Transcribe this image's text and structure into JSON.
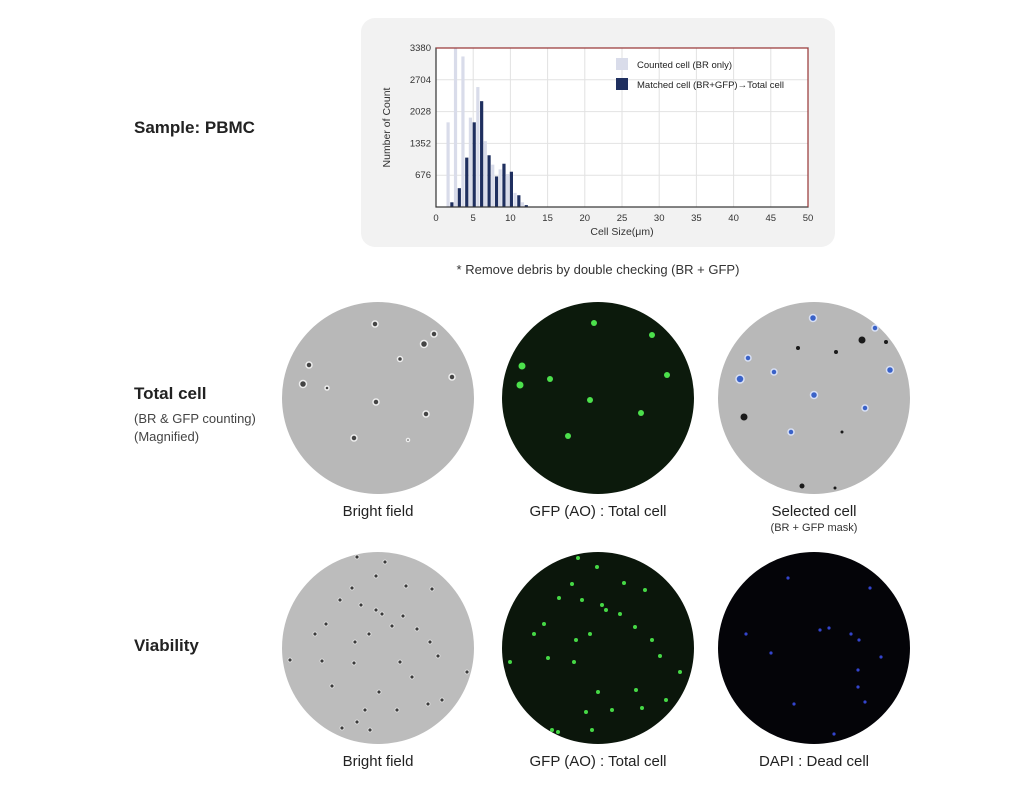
{
  "sample_label": "Sample: PBMC",
  "note": "* Remove debris by double checking (BR + GFP)",
  "chart_data": {
    "type": "bar",
    "xlabel": "Cell Size(μm)",
    "ylabel": "Number of Count",
    "xlim": [
      0,
      50
    ],
    "ylim": [
      0,
      3380
    ],
    "xticks": [
      0,
      5,
      10,
      15,
      20,
      25,
      30,
      35,
      40,
      45,
      50
    ],
    "yticks": [
      676,
      1352,
      2028,
      2704,
      3380
    ],
    "grid": true,
    "legend_position": "top-right",
    "series": [
      {
        "name": "Counted cell (BR only)",
        "color": "#d9dcea",
        "x": [
          2,
          3,
          4,
          5,
          6,
          7,
          8,
          9,
          10,
          11,
          12
        ],
        "values": [
          1800,
          3380,
          3200,
          1900,
          2550,
          1400,
          900,
          800,
          700,
          300,
          100
        ]
      },
      {
        "name": "Matched cell (BR+GFP)→Total cell",
        "color": "#1f2f5f",
        "x": [
          2,
          3,
          4,
          5,
          6,
          7,
          8,
          9,
          10,
          11,
          12
        ],
        "values": [
          100,
          400,
          1050,
          1800,
          2250,
          1100,
          650,
          920,
          750,
          250,
          40
        ]
      }
    ]
  },
  "rows": [
    {
      "title": "Total cell",
      "subtitle_lines": [
        "(BR & GFP counting)",
        "(Magnified)"
      ],
      "images": [
        {
          "caption": "Bright field",
          "sub": ""
        },
        {
          "caption": "GFP (AO) : Total cell",
          "sub": ""
        },
        {
          "caption": "Selected cell",
          "sub": "(BR + GFP mask)"
        }
      ]
    },
    {
      "title": "Viability",
      "subtitle_lines": [],
      "images": [
        {
          "caption": "Bright field",
          "sub": ""
        },
        {
          "caption": "GFP (AO) : Total cell",
          "sub": ""
        },
        {
          "caption": "DAPI : Dead cell",
          "sub": ""
        }
      ]
    }
  ]
}
